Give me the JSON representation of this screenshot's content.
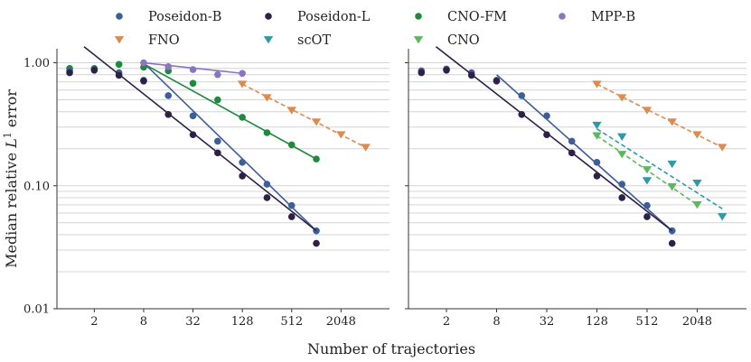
{
  "chart_data": {
    "type": "scatter",
    "xlabel": "Number of trajectories",
    "ylabel": "Median relative L¹ error",
    "xscale": "log2",
    "yscale": "log10",
    "xlim": [
      0.7,
      8000
    ],
    "ylim": [
      0.01,
      1.3
    ],
    "xticks": [
      {
        "value": 2,
        "label": "2"
      },
      {
        "value": 8,
        "label": "8"
      },
      {
        "value": 32,
        "label": "32"
      },
      {
        "value": 128,
        "label": "128"
      },
      {
        "value": 512,
        "label": "512"
      },
      {
        "value": 2048,
        "label": "2048"
      }
    ],
    "yticks": [
      {
        "value": 0.01,
        "label": "0.01"
      },
      {
        "value": 0.1,
        "label": "0.10"
      },
      {
        "value": 1,
        "label": "1.00"
      }
    ],
    "grid": "horizontal-major-and-minor",
    "legend": [
      {
        "name": "Poseidon-B",
        "color": "#3c5e9a",
        "marker": "circle"
      },
      {
        "name": "Poseidon-L",
        "color": "#2d2148",
        "marker": "circle"
      },
      {
        "name": "CNO-FM",
        "color": "#1f8a3c",
        "marker": "circle"
      },
      {
        "name": "MPP-B",
        "color": "#8a76bd",
        "marker": "circle"
      },
      {
        "name": "FNO",
        "color": "#dd8a4e",
        "marker": "triangle-down"
      },
      {
        "name": "scOT",
        "color": "#2e9aa8",
        "marker": "triangle-down"
      },
      {
        "name": "CNO",
        "color": "#5cb85c",
        "marker": "triangle-down"
      }
    ],
    "panels": [
      {
        "name": "left",
        "series": [
          {
            "name": "CNO-FM",
            "color": "#1f8a3c",
            "marker": "circle",
            "points": [
              [
                1,
                0.9
              ],
              [
                2,
                0.9
              ],
              [
                4,
                0.97
              ],
              [
                8,
                0.92
              ],
              [
                16,
                0.86
              ],
              [
                32,
                0.68
              ],
              [
                64,
                0.5
              ],
              [
                128,
                0.36
              ],
              [
                256,
                0.27
              ],
              [
                512,
                0.215
              ],
              [
                1024,
                0.165
              ]
            ],
            "fit": {
              "style": "solid",
              "from": [
                8,
                0.98
              ],
              "to": [
                1024,
                0.165
              ]
            }
          },
          {
            "name": "Poseidon-B",
            "color": "#3c5e9a",
            "marker": "circle",
            "points": [
              [
                1,
                0.86
              ],
              [
                2,
                0.89
              ],
              [
                4,
                0.83
              ],
              [
                8,
                0.72
              ],
              [
                16,
                0.54
              ],
              [
                32,
                0.37
              ],
              [
                64,
                0.23
              ],
              [
                128,
                0.155
              ],
              [
                256,
                0.103
              ],
              [
                512,
                0.069
              ],
              [
                1024,
                0.043
              ]
            ],
            "fit": {
              "style": "solid",
              "from": [
                8,
                1.0
              ],
              "to": [
                1024,
                0.043
              ]
            }
          },
          {
            "name": "Poseidon-L",
            "color": "#2d2148",
            "marker": "circle",
            "points": [
              [
                1,
                0.83
              ],
              [
                2,
                0.87
              ],
              [
                4,
                0.79
              ],
              [
                8,
                0.71
              ],
              [
                16,
                0.38
              ],
              [
                32,
                0.26
              ],
              [
                64,
                0.185
              ],
              [
                128,
                0.12
              ],
              [
                256,
                0.08
              ],
              [
                512,
                0.056
              ],
              [
                1024,
                0.034
              ]
            ],
            "fit": {
              "style": "solid",
              "from": [
                1.5,
                1.35
              ],
              "to": [
                1024,
                0.043
              ]
            }
          },
          {
            "name": "MPP-B",
            "color": "#8a76bd",
            "marker": "circle",
            "points": [
              [
                8,
                1.0
              ],
              [
                16,
                0.93
              ],
              [
                32,
                0.88
              ],
              [
                64,
                0.8
              ],
              [
                128,
                0.82
              ]
            ],
            "fit": {
              "style": "solid",
              "from": [
                8,
                1.0
              ],
              "to": [
                128,
                0.82
              ]
            }
          },
          {
            "name": "FNO",
            "color": "#dd8a4e",
            "marker": "triangle-down",
            "points": [
              [
                128,
                0.67
              ],
              [
                256,
                0.52
              ],
              [
                512,
                0.41
              ],
              [
                1024,
                0.33
              ],
              [
                2048,
                0.26
              ],
              [
                4096,
                0.205
              ]
            ],
            "fit": {
              "style": "dashed",
              "from": [
                128,
                0.67
              ],
              "to": [
                4096,
                0.205
              ]
            }
          }
        ]
      },
      {
        "name": "right",
        "series": [
          {
            "name": "Poseidon-B",
            "color": "#3c5e9a",
            "marker": "circle",
            "points": [
              [
                1,
                0.86
              ],
              [
                2,
                0.89
              ],
              [
                4,
                0.83
              ],
              [
                8,
                0.72
              ],
              [
                16,
                0.54
              ],
              [
                32,
                0.37
              ],
              [
                64,
                0.23
              ],
              [
                128,
                0.155
              ],
              [
                256,
                0.103
              ],
              [
                512,
                0.069
              ],
              [
                1024,
                0.043
              ]
            ],
            "fit": {
              "style": "solid",
              "from": [
                8,
                0.8
              ],
              "to": [
                1024,
                0.043
              ]
            }
          },
          {
            "name": "Poseidon-L",
            "color": "#2d2148",
            "marker": "circle",
            "points": [
              [
                1,
                0.83
              ],
              [
                2,
                0.87
              ],
              [
                4,
                0.79
              ],
              [
                8,
                0.71
              ],
              [
                16,
                0.38
              ],
              [
                32,
                0.26
              ],
              [
                64,
                0.185
              ],
              [
                128,
                0.12
              ],
              [
                256,
                0.08
              ],
              [
                512,
                0.056
              ],
              [
                1024,
                0.034
              ]
            ],
            "fit": {
              "style": "solid",
              "from": [
                1.5,
                1.35
              ],
              "to": [
                1024,
                0.043
              ]
            }
          },
          {
            "name": "FNO",
            "color": "#dd8a4e",
            "marker": "triangle-down",
            "points": [
              [
                128,
                0.67
              ],
              [
                256,
                0.52
              ],
              [
                512,
                0.41
              ],
              [
                1024,
                0.33
              ],
              [
                2048,
                0.26
              ],
              [
                4096,
                0.205
              ]
            ],
            "fit": {
              "style": "dashed",
              "from": [
                128,
                0.67
              ],
              "to": [
                4096,
                0.205
              ]
            }
          },
          {
            "name": "scOT",
            "color": "#2e9aa8",
            "marker": "triangle-down",
            "points": [
              [
                128,
                0.31
              ],
              [
                256,
                0.25
              ],
              [
                512,
                0.11
              ],
              [
                1024,
                0.15
              ],
              [
                2048,
                0.105
              ],
              [
                4096,
                0.056
              ]
            ],
            "fit": {
              "style": "dashed",
              "from": [
                128,
                0.29
              ],
              "to": [
                4096,
                0.065
              ]
            }
          },
          {
            "name": "CNO",
            "color": "#5cb85c",
            "marker": "triangle-down",
            "points": [
              [
                128,
                0.255
              ],
              [
                256,
                0.18
              ],
              [
                512,
                0.135
              ],
              [
                1024,
                0.098
              ],
              [
                2048,
                0.07
              ]
            ],
            "fit": {
              "style": "dashed",
              "from": [
                128,
                0.255
              ],
              "to": [
                2048,
                0.07
              ]
            }
          }
        ]
      }
    ]
  }
}
